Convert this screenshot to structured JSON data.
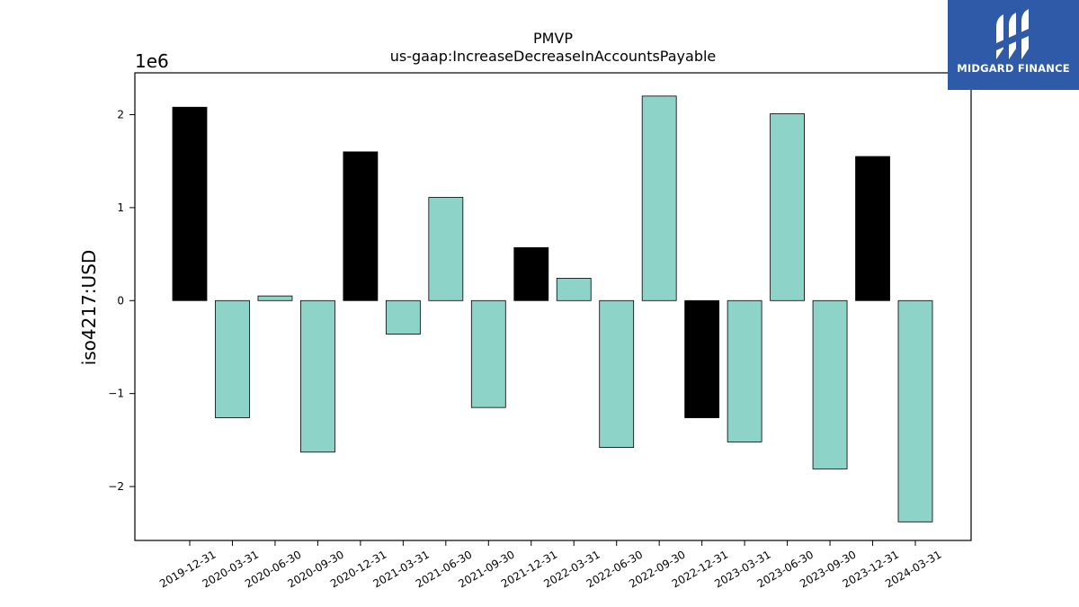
{
  "brand": {
    "name": "MIDGARD FINANCE",
    "color": "#2f5aa8"
  },
  "chart_data": {
    "type": "bar",
    "title": "PMVP",
    "subtitle": "us-gaap:IncreaseDecreaseInAccountsPayable",
    "xlabel": "",
    "ylabel": "iso4217:USD",
    "y_scale_label": "1e6",
    "ylim": [
      -2.58,
      2.45
    ],
    "yticks": [
      -2,
      -1,
      0,
      1,
      2
    ],
    "ytick_labels": [
      "−2",
      "−1",
      "0",
      "1",
      "2"
    ],
    "grid": false,
    "categories": [
      "2019-12-31",
      "2020-03-31",
      "2020-06-30",
      "2020-09-30",
      "2020-12-31",
      "2021-03-31",
      "2021-06-30",
      "2021-09-30",
      "2021-12-31",
      "2022-03-31",
      "2022-06-30",
      "2022-09-30",
      "2022-12-31",
      "2023-03-31",
      "2023-06-30",
      "2023-09-30",
      "2023-12-31",
      "2024-03-31"
    ],
    "values": [
      2.08,
      -1.26,
      0.05,
      -1.63,
      1.6,
      -0.36,
      1.11,
      -1.15,
      0.57,
      0.24,
      -1.58,
      2.2,
      -1.26,
      -1.52,
      2.01,
      -1.81,
      1.55,
      -2.38
    ],
    "bar_colors": [
      "#000000",
      "#8dd3c7",
      "#8dd3c7",
      "#8dd3c7",
      "#000000",
      "#8dd3c7",
      "#8dd3c7",
      "#8dd3c7",
      "#000000",
      "#8dd3c7",
      "#8dd3c7",
      "#8dd3c7",
      "#000000",
      "#8dd3c7",
      "#8dd3c7",
      "#8dd3c7",
      "#000000",
      "#8dd3c7"
    ]
  }
}
